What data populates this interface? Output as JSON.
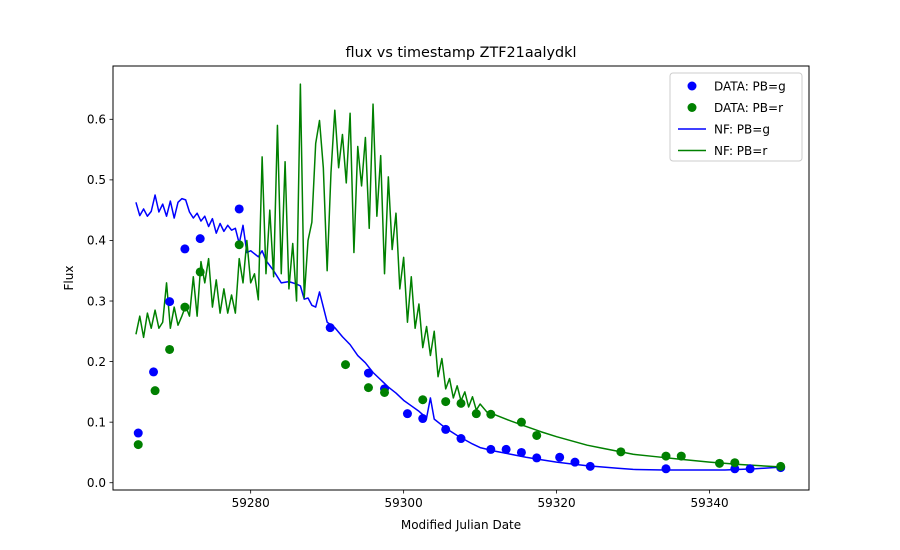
{
  "chart_data": {
    "type": "scatter",
    "title": "flux vs timestamp ZTF21aalydkl",
    "xlabel": "Modified Julian Date",
    "ylabel": "Flux",
    "xlim": [
      59262.0,
      59353.0
    ],
    "ylim": [
      -0.012,
      0.688
    ],
    "x_ticks": [
      59280,
      59300,
      59320,
      59340
    ],
    "y_ticks": [
      0.0,
      0.1,
      0.2,
      0.3,
      0.4,
      0.5,
      0.6
    ],
    "x_tick_labels": [
      "59280",
      "59300",
      "59320",
      "59340"
    ],
    "y_tick_labels": [
      "0.0",
      "0.1",
      "0.2",
      "0.3",
      "0.4",
      "0.5",
      "0.6"
    ],
    "grid": false,
    "legend_position": "top-right",
    "colors": {
      "g": "#0000ff",
      "r": "#008000"
    },
    "series": [
      {
        "name": "DATA: PB=g",
        "kind": "scatter",
        "color": "#0000ff",
        "points": [
          [
            59265.3,
            0.082
          ],
          [
            59267.3,
            0.183
          ],
          [
            59269.4,
            0.299
          ],
          [
            59271.4,
            0.386
          ],
          [
            59273.4,
            0.403
          ],
          [
            59278.5,
            0.452
          ],
          [
            59290.4,
            0.256
          ],
          [
            59295.4,
            0.181
          ],
          [
            59297.5,
            0.155
          ],
          [
            59300.5,
            0.114
          ],
          [
            59302.5,
            0.106
          ],
          [
            59305.5,
            0.088
          ],
          [
            59307.5,
            0.073
          ],
          [
            59311.4,
            0.055
          ],
          [
            59313.4,
            0.055
          ],
          [
            59315.4,
            0.05
          ],
          [
            59317.4,
            0.041
          ],
          [
            59320.4,
            0.042
          ],
          [
            59322.4,
            0.034
          ],
          [
            59324.4,
            0.027
          ],
          [
            59334.3,
            0.023
          ],
          [
            59343.3,
            0.023
          ],
          [
            59345.3,
            0.023
          ],
          [
            59349.3,
            0.025
          ]
        ]
      },
      {
        "name": "DATA: PB=r",
        "kind": "scatter",
        "color": "#008000",
        "points": [
          [
            59265.3,
            0.063
          ],
          [
            59267.5,
            0.152
          ],
          [
            59269.4,
            0.22
          ],
          [
            59271.4,
            0.29
          ],
          [
            59273.4,
            0.348
          ],
          [
            59278.5,
            0.393
          ],
          [
            59292.4,
            0.195
          ],
          [
            59295.4,
            0.157
          ],
          [
            59297.5,
            0.149
          ],
          [
            59302.5,
            0.137
          ],
          [
            59305.5,
            0.134
          ],
          [
            59307.5,
            0.131
          ],
          [
            59309.5,
            0.114
          ],
          [
            59311.4,
            0.113
          ],
          [
            59315.4,
            0.1
          ],
          [
            59317.4,
            0.078
          ],
          [
            59328.4,
            0.051
          ],
          [
            59334.3,
            0.044
          ],
          [
            59336.3,
            0.044
          ],
          [
            59341.3,
            0.032
          ],
          [
            59343.3,
            0.033
          ],
          [
            59349.3,
            0.027
          ]
        ]
      },
      {
        "name": "NF: PB=g",
        "kind": "line",
        "color": "#0000ff",
        "points": [
          [
            59265.0,
            0.463
          ],
          [
            59265.5,
            0.441
          ],
          [
            59266.0,
            0.452
          ],
          [
            59266.5,
            0.44
          ],
          [
            59267.0,
            0.448
          ],
          [
            59267.5,
            0.475
          ],
          [
            59268.0,
            0.447
          ],
          [
            59268.5,
            0.46
          ],
          [
            59269.0,
            0.44
          ],
          [
            59269.5,
            0.465
          ],
          [
            59270.0,
            0.437
          ],
          [
            59270.5,
            0.463
          ],
          [
            59271.0,
            0.469
          ],
          [
            59271.5,
            0.467
          ],
          [
            59272.0,
            0.447
          ],
          [
            59272.5,
            0.437
          ],
          [
            59273.0,
            0.445
          ],
          [
            59273.5,
            0.432
          ],
          [
            59274.0,
            0.44
          ],
          [
            59274.5,
            0.423
          ],
          [
            59275.0,
            0.436
          ],
          [
            59275.5,
            0.412
          ],
          [
            59276.0,
            0.428
          ],
          [
            59276.5,
            0.415
          ],
          [
            59277.0,
            0.425
          ],
          [
            59277.5,
            0.417
          ],
          [
            59278.0,
            0.42
          ],
          [
            59278.5,
            0.395
          ],
          [
            59279.0,
            0.425
          ],
          [
            59279.5,
            0.38
          ],
          [
            59280.0,
            0.383
          ],
          [
            59281.0,
            0.373
          ],
          [
            59281.5,
            0.383
          ],
          [
            59282.0,
            0.367
          ],
          [
            59283.0,
            0.35
          ],
          [
            59283.5,
            0.34
          ],
          [
            59284.0,
            0.33
          ],
          [
            59285.0,
            0.332
          ],
          [
            59286.0,
            0.328
          ],
          [
            59286.5,
            0.325
          ],
          [
            59287.0,
            0.303
          ],
          [
            59287.5,
            0.305
          ],
          [
            59288.0,
            0.293
          ],
          [
            59288.5,
            0.29
          ],
          [
            59289.0,
            0.315
          ],
          [
            59289.5,
            0.29
          ],
          [
            59290.0,
            0.265
          ],
          [
            59291.0,
            0.256
          ],
          [
            59292.0,
            0.241
          ],
          [
            59293.0,
            0.228
          ],
          [
            59294.0,
            0.21
          ],
          [
            59295.0,
            0.198
          ],
          [
            59296.0,
            0.182
          ],
          [
            59297.0,
            0.17
          ],
          [
            59298.0,
            0.158
          ],
          [
            59299.0,
            0.148
          ],
          [
            59300.0,
            0.136
          ],
          [
            59301.0,
            0.127
          ],
          [
            59302.0,
            0.118
          ],
          [
            59303.0,
            0.107
          ],
          [
            59303.5,
            0.14
          ],
          [
            59304.0,
            0.105
          ],
          [
            59305.0,
            0.095
          ],
          [
            59306.0,
            0.086
          ],
          [
            59307.0,
            0.078
          ],
          [
            59308.0,
            0.071
          ],
          [
            59309.0,
            0.064
          ],
          [
            59310.0,
            0.058
          ],
          [
            59312.0,
            0.052
          ],
          [
            59314.0,
            0.047
          ],
          [
            59316.0,
            0.042
          ],
          [
            59318.0,
            0.038
          ],
          [
            59320.0,
            0.034
          ],
          [
            59322.0,
            0.031
          ],
          [
            59324.0,
            0.028
          ],
          [
            59326.0,
            0.026
          ],
          [
            59328.0,
            0.024
          ],
          [
            59330.0,
            0.022
          ],
          [
            59334.0,
            0.021
          ],
          [
            59338.0,
            0.021
          ],
          [
            59342.0,
            0.021
          ],
          [
            59346.0,
            0.023
          ],
          [
            59349.5,
            0.026
          ]
        ]
      },
      {
        "name": "NF: PB=r",
        "kind": "line",
        "color": "#008000",
        "points": [
          [
            59265.0,
            0.245
          ],
          [
            59265.5,
            0.275
          ],
          [
            59266.0,
            0.24
          ],
          [
            59266.5,
            0.28
          ],
          [
            59267.0,
            0.255
          ],
          [
            59267.5,
            0.285
          ],
          [
            59268.0,
            0.255
          ],
          [
            59268.5,
            0.265
          ],
          [
            59269.0,
            0.33
          ],
          [
            59269.5,
            0.255
          ],
          [
            59270.0,
            0.29
          ],
          [
            59270.5,
            0.26
          ],
          [
            59271.0,
            0.275
          ],
          [
            59271.5,
            0.292
          ],
          [
            59272.0,
            0.275
          ],
          [
            59272.5,
            0.34
          ],
          [
            59273.0,
            0.275
          ],
          [
            59273.5,
            0.365
          ],
          [
            59274.0,
            0.33
          ],
          [
            59274.5,
            0.37
          ],
          [
            59275.0,
            0.29
          ],
          [
            59275.5,
            0.335
          ],
          [
            59276.0,
            0.28
          ],
          [
            59276.5,
            0.32
          ],
          [
            59277.0,
            0.28
          ],
          [
            59277.5,
            0.31
          ],
          [
            59278.0,
            0.28
          ],
          [
            59278.5,
            0.37
          ],
          [
            59279.0,
            0.33
          ],
          [
            59279.5,
            0.4
          ],
          [
            59280.0,
            0.33
          ],
          [
            59280.5,
            0.345
          ],
          [
            59281.0,
            0.302
          ],
          [
            59281.5,
            0.538
          ],
          [
            59282.0,
            0.345
          ],
          [
            59282.5,
            0.45
          ],
          [
            59283.0,
            0.34
          ],
          [
            59283.5,
            0.59
          ],
          [
            59284.0,
            0.345
          ],
          [
            59284.5,
            0.53
          ],
          [
            59285.0,
            0.32
          ],
          [
            59285.5,
            0.395
          ],
          [
            59286.0,
            0.3
          ],
          [
            59286.5,
            0.658
          ],
          [
            59287.0,
            0.305
          ],
          [
            59287.5,
            0.4
          ],
          [
            59288.0,
            0.43
          ],
          [
            59288.5,
            0.56
          ],
          [
            59289.0,
            0.598
          ],
          [
            59289.5,
            0.52
          ],
          [
            59290.0,
            0.35
          ],
          [
            59290.5,
            0.512
          ],
          [
            59291.0,
            0.615
          ],
          [
            59291.5,
            0.52
          ],
          [
            59292.0,
            0.575
          ],
          [
            59292.5,
            0.495
          ],
          [
            59293.0,
            0.61
          ],
          [
            59293.5,
            0.38
          ],
          [
            59294.0,
            0.555
          ],
          [
            59294.5,
            0.49
          ],
          [
            59295.0,
            0.57
          ],
          [
            59295.5,
            0.42
          ],
          [
            59296.0,
            0.625
          ],
          [
            59296.5,
            0.44
          ],
          [
            59297.0,
            0.54
          ],
          [
            59297.5,
            0.345
          ],
          [
            59298.0,
            0.505
          ],
          [
            59298.5,
            0.385
          ],
          [
            59299.0,
            0.445
          ],
          [
            59299.5,
            0.32
          ],
          [
            59300.0,
            0.372
          ],
          [
            59300.5,
            0.265
          ],
          [
            59301.0,
            0.34
          ],
          [
            59301.5,
            0.255
          ],
          [
            59302.0,
            0.295
          ],
          [
            59302.5,
            0.223
          ],
          [
            59303.0,
            0.258
          ],
          [
            59303.5,
            0.21
          ],
          [
            59304.0,
            0.25
          ],
          [
            59304.5,
            0.175
          ],
          [
            59305.0,
            0.205
          ],
          [
            59305.5,
            0.155
          ],
          [
            59306.0,
            0.172
          ],
          [
            59306.5,
            0.14
          ],
          [
            59307.0,
            0.16
          ],
          [
            59307.5,
            0.135
          ],
          [
            59308.0,
            0.15
          ],
          [
            59308.5,
            0.125
          ],
          [
            59309.0,
            0.142
          ],
          [
            59309.5,
            0.12
          ],
          [
            59310.0,
            0.13
          ],
          [
            59311.0,
            0.115
          ],
          [
            59312.0,
            0.112
          ],
          [
            59314.0,
            0.102
          ],
          [
            59316.0,
            0.093
          ],
          [
            59318.0,
            0.084
          ],
          [
            59320.0,
            0.076
          ],
          [
            59322.0,
            0.069
          ],
          [
            59324.0,
            0.062
          ],
          [
            59326.0,
            0.057
          ],
          [
            59328.0,
            0.052
          ],
          [
            59330.0,
            0.047
          ],
          [
            59333.0,
            0.043
          ],
          [
            59336.0,
            0.039
          ],
          [
            59340.0,
            0.034
          ],
          [
            59344.0,
            0.03
          ],
          [
            59349.5,
            0.026
          ]
        ]
      }
    ]
  }
}
